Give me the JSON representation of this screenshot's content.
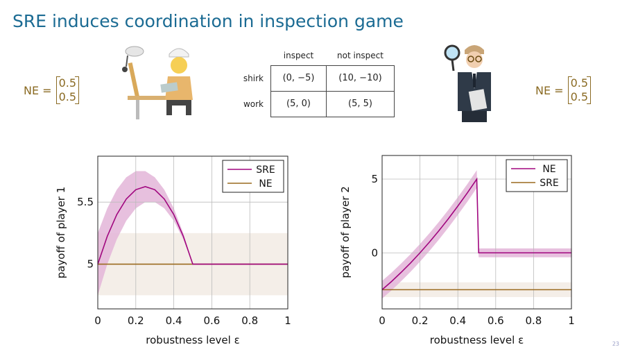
{
  "slide": {
    "title": "SRE induces coordination in inspection game",
    "page_number": "23",
    "left_equilibrium": {
      "label": "NE =",
      "vector": [
        "0.5",
        "0.5"
      ]
    },
    "right_equilibrium": {
      "label": "NE =",
      "vector": [
        "0.5",
        "0.5"
      ]
    },
    "left_figure_icon": "construction-worker-at-desk-icon",
    "right_figure_icon": "inspector-with-magnifying-glass-icon",
    "colors": {
      "title": "#1b6b93",
      "equilibrium_text": "#8a6a22",
      "magenta": "#a0057e",
      "brown": "#9a6a1e"
    }
  },
  "game_table": {
    "columns": [
      "inspect",
      "not inspect"
    ],
    "rows": [
      {
        "label": "shirk",
        "cells": [
          "(0, −5)",
          "(10, −10)"
        ]
      },
      {
        "label": "work",
        "cells": [
          "(5, 0)",
          "(5, 5)"
        ]
      }
    ]
  },
  "chart_data": [
    {
      "type": "line",
      "xlabel": "robustness level ε",
      "ylabel": "payoff of player 1",
      "xlim": [
        0,
        1
      ],
      "ylim": [
        4.64,
        5.87
      ],
      "xticks": [
        "0",
        "0.2",
        "0.4",
        "0.6",
        "0.8",
        "1"
      ],
      "yticks": [
        {
          "value": 5,
          "label": "5"
        },
        {
          "value": 5.5,
          "label": "5.5"
        }
      ],
      "grid": true,
      "legend_position": "top-right",
      "series": [
        {
          "name": "SRE",
          "color": "#a0057e",
          "band_color": "#e3b5d8",
          "x": [
            0,
            0.05,
            0.1,
            0.15,
            0.2,
            0.25,
            0.3,
            0.35,
            0.4,
            0.45,
            0.5,
            0.55,
            0.6,
            0.65,
            0.7,
            0.75,
            0.8,
            0.85,
            0.9,
            0.95,
            1
          ],
          "y": [
            5,
            5.225,
            5.4,
            5.525,
            5.6,
            5.625,
            5.6,
            5.525,
            5.4,
            5.225,
            5,
            5,
            5,
            5,
            5,
            5,
            5,
            5,
            5,
            5,
            5
          ],
          "lower": [
            4.75,
            5.0,
            5.2,
            5.35,
            5.45,
            5.5,
            5.5,
            5.45,
            5.35,
            5.2,
            5,
            5,
            5,
            5,
            5,
            5,
            5,
            5,
            5,
            5,
            5
          ],
          "upper": [
            5.25,
            5.45,
            5.6,
            5.7,
            5.75,
            5.75,
            5.7,
            5.6,
            5.45,
            5.25,
            5,
            5,
            5,
            5,
            5,
            5,
            5,
            5,
            5,
            5,
            5
          ]
        },
        {
          "name": "NE",
          "color": "#9a6a1e",
          "band_color": "#f2ebe4",
          "x": [
            0,
            1
          ],
          "y": [
            5,
            5
          ],
          "lower": [
            4.75,
            4.75
          ],
          "upper": [
            5.25,
            5.25
          ]
        }
      ]
    },
    {
      "type": "line",
      "xlabel": "robustness level ε",
      "ylabel": "payoff of player 2",
      "xlim": [
        0,
        1
      ],
      "ylim": [
        -3.8,
        6.6
      ],
      "xticks": [
        "0",
        "0.2",
        "0.4",
        "0.6",
        "0.8",
        "1"
      ],
      "yticks": [
        {
          "value": 0,
          "label": "0"
        },
        {
          "value": 5,
          "label": "5"
        }
      ],
      "grid": true,
      "legend_position": "top-right",
      "series": [
        {
          "name": "NE",
          "color": "#a0057e",
          "band_color": "#e3b5d8",
          "x": [
            0,
            0.05,
            0.1,
            0.15,
            0.2,
            0.25,
            0.3,
            0.35,
            0.4,
            0.45,
            0.5,
            0.51,
            0.6,
            0.7,
            0.8,
            0.9,
            1
          ],
          "y": [
            -2.5,
            -1.94,
            -1.33,
            -0.69,
            0,
            0.73,
            1.5,
            2.31,
            3.17,
            4.06,
            5,
            0,
            0,
            0,
            0,
            0,
            0
          ],
          "lower": [
            -3.1,
            -2.54,
            -1.93,
            -1.29,
            -0.6,
            0.13,
            0.9,
            1.71,
            2.57,
            3.46,
            4.4,
            -0.3,
            -0.3,
            -0.3,
            -0.3,
            -0.3,
            -0.3
          ],
          "upper": [
            -1.9,
            -1.34,
            -0.73,
            -0.09,
            0.6,
            1.33,
            2.1,
            2.91,
            3.77,
            4.66,
            5.6,
            0.3,
            0.3,
            0.3,
            0.3,
            0.3,
            0.3
          ]
        },
        {
          "name": "SRE",
          "color": "#9a6a1e",
          "band_color": "#f2ebe4",
          "x": [
            0,
            1
          ],
          "y": [
            -2.5,
            -2.5
          ],
          "lower": [
            -3.0,
            -3.0
          ],
          "upper": [
            -2.0,
            -2.0
          ]
        }
      ]
    }
  ]
}
